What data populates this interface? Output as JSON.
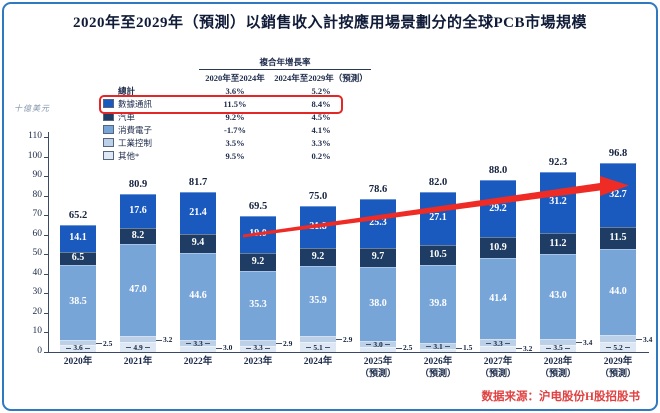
{
  "title": "2020年至2029年（預測）以銷售收入計按應用場景劃分的全球PCB市場規模",
  "source": "数据来源：沪电股份H股招股书",
  "colors": {
    "frame": "#3079c0",
    "accent_red": "#e32626",
    "arrow": "#ee2b24",
    "source_text": "#e04040"
  },
  "cagr_table": {
    "header": "複合年增長率",
    "col1": "2020年至2024年",
    "col2": "2024年至2029年（預測）",
    "rows": [
      {
        "label": "總計",
        "v1": "3.6%",
        "v2": "5.2%",
        "swatch": "",
        "bold": true,
        "highlight": false
      },
      {
        "label": "數據通訊",
        "v1": "11.5%",
        "v2": "8.4%",
        "swatch": "#1a5abf",
        "bold": false,
        "highlight": true
      },
      {
        "label": "汽車",
        "v1": "9.2%",
        "v2": "4.5%",
        "swatch": "#1e3c64",
        "bold": false,
        "highlight": false
      },
      {
        "label": "消費電子",
        "v1": "-1.7%",
        "v2": "4.1%",
        "swatch": "#78a5d8",
        "bold": false,
        "highlight": false
      },
      {
        "label": "工業控制",
        "v1": "3.5%",
        "v2": "3.3%",
        "swatch": "#bcd0e8",
        "bold": false,
        "highlight": false
      },
      {
        "label": "其他*",
        "v1": "9.5%",
        "v2": "0.2%",
        "swatch": "#dde8f4",
        "bold": false,
        "highlight": false
      }
    ]
  },
  "chart_data": {
    "type": "bar",
    "stacked": true,
    "title": "2020年至2029年（預測）以銷售收入計按應用場景劃分的全球PCB市場規模",
    "unit_label": "十億美元",
    "xlabel": "",
    "ylabel": "十億美元",
    "ylim": [
      0,
      110
    ],
    "ytick_step": 10,
    "grid": false,
    "legend_position": "top-left-table",
    "categories": [
      "2020年",
      "2021年",
      "2022年",
      "2023年",
      "2024年",
      "2025年",
      "2026年",
      "2027年",
      "2028年",
      "2029年"
    ],
    "category_notes": [
      "",
      "",
      "",
      "",
      "",
      "（預測）",
      "（預測）",
      "（預測）",
      "（預測）",
      "（預測）"
    ],
    "totals": [
      "65.2",
      "80.9",
      "81.7",
      "69.5",
      "75.0",
      "78.6",
      "82.0",
      "88.0",
      "92.3",
      "96.8"
    ],
    "series": [
      {
        "name": "其他*",
        "color": "#dde8f4",
        "label_color": "#17253f",
        "small": true,
        "values": [
          "3.6",
          "4.9",
          "3.0",
          "3.3",
          "5.1",
          "2.5",
          "1.5",
          "3.2",
          "3.5",
          "5.2"
        ]
      },
      {
        "name": "工業控制",
        "color": "#bcd0e8",
        "label_color": "#17253f",
        "small": true,
        "values": [
          "2.5",
          "3.2",
          "3.3",
          "2.9",
          "2.9",
          "3.0",
          "3.1",
          "3.3",
          "3.4",
          "3.4"
        ]
      },
      {
        "name": "消費電子",
        "color": "#78a5d8",
        "label_color": "#ffffff",
        "small": false,
        "values": [
          "38.5",
          "47.0",
          "44.6",
          "35.3",
          "35.9",
          "38.0",
          "39.8",
          "41.4",
          "43.0",
          "44.0"
        ]
      },
      {
        "name": "汽車",
        "color": "#1e3c64",
        "label_color": "#ffffff",
        "small": false,
        "values": [
          "6.5",
          "8.2",
          "9.4",
          "9.2",
          "9.2",
          "9.7",
          "10.5",
          "10.9",
          "11.2",
          "11.5"
        ]
      },
      {
        "name": "數據通訊",
        "color": "#1a5abf",
        "label_color": "#ffffff",
        "small": false,
        "values": [
          "14.1",
          "17.6",
          "21.4",
          "19.0",
          "21.8",
          "25.3",
          "27.1",
          "29.2",
          "31.2",
          "32.7"
        ]
      }
    ],
    "annotations": {
      "trend_arrow": "red arrow rising from 2023 data-communication segment to 2029 data-communication segment",
      "highlight_box": "red rounded box around 數據通訊 CAGR row"
    }
  }
}
